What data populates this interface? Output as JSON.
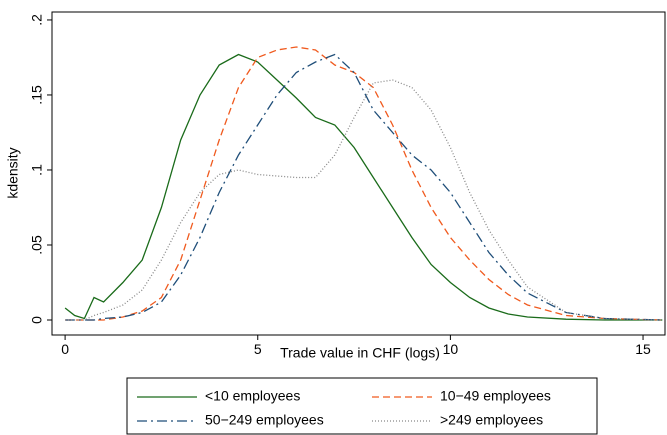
{
  "chart_data": {
    "type": "line",
    "x_label": "Trade value in CHF (logs)",
    "y_label": "kdensity",
    "x": [
      0,
      0.25,
      0.5,
      0.75,
      1,
      1.5,
      2,
      2.5,
      3,
      3.5,
      4,
      4.5,
      5,
      5.5,
      6,
      6.5,
      7,
      7.5,
      8,
      8.5,
      9,
      9.5,
      10,
      10.5,
      11,
      11.5,
      12,
      13,
      14,
      15.5
    ],
    "series": [
      {
        "name": "<10 employees",
        "color": "#1a6b1a",
        "style": "solid",
        "values": [
          0.008,
          0.003,
          0.001,
          0.015,
          0.012,
          0.025,
          0.04,
          0.075,
          0.12,
          0.15,
          0.17,
          0.177,
          0.172,
          0.16,
          0.148,
          0.135,
          0.13,
          0.115,
          0.095,
          0.075,
          0.055,
          0.037,
          0.025,
          0.015,
          0.008,
          0.004,
          0.002,
          0.0005,
          0,
          0
        ]
      },
      {
        "name": "10−49 employees",
        "color": "#f05a1e",
        "style": "dash",
        "values": [
          0,
          0,
          0,
          0,
          0,
          0.002,
          0.006,
          0.015,
          0.04,
          0.08,
          0.12,
          0.155,
          0.175,
          0.18,
          0.182,
          0.18,
          0.17,
          0.165,
          0.155,
          0.13,
          0.1,
          0.075,
          0.055,
          0.04,
          0.027,
          0.017,
          0.01,
          0.003,
          0.001,
          0
        ]
      },
      {
        "name": "50−249 employees",
        "color": "#1f4e79",
        "style": "dashdot",
        "values": [
          0,
          0,
          0,
          0,
          0.001,
          0.002,
          0.005,
          0.012,
          0.03,
          0.055,
          0.085,
          0.11,
          0.13,
          0.15,
          0.165,
          0.172,
          0.177,
          0.165,
          0.14,
          0.125,
          0.11,
          0.1,
          0.085,
          0.065,
          0.045,
          0.03,
          0.018,
          0.005,
          0.001,
          0
        ]
      },
      {
        "name": ">249 employees",
        "color": "#888888",
        "style": "dot",
        "values": [
          0,
          0,
          0,
          0.003,
          0.005,
          0.01,
          0.02,
          0.04,
          0.065,
          0.085,
          0.097,
          0.1,
          0.097,
          0.096,
          0.095,
          0.095,
          0.11,
          0.135,
          0.158,
          0.16,
          0.155,
          0.14,
          0.115,
          0.085,
          0.06,
          0.04,
          0.022,
          0.005,
          0.001,
          0
        ]
      }
    ],
    "xlim": [
      -0.34,
      15.57
    ],
    "xticks": [
      0,
      5,
      10,
      15
    ],
    "ylim": [
      -0.01,
      0.2053
    ],
    "yticks": [
      0,
      {
        "value": 0.05,
        "label": ".05"
      },
      {
        "value": 0.1,
        "label": ".1"
      },
      {
        "value": 0.15,
        "label": ".15"
      },
      {
        "value": 0.2,
        "label": ".2"
      }
    ],
    "legend": "bottom"
  }
}
